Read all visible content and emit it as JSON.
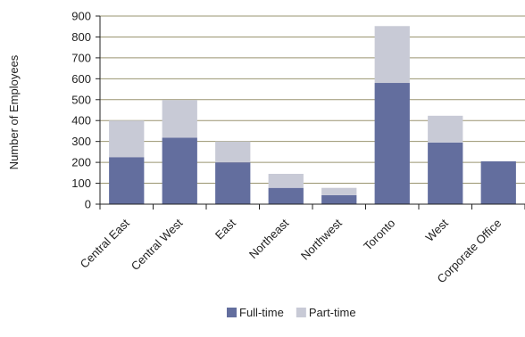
{
  "chart_data": {
    "type": "bar",
    "stacked": true,
    "title": "",
    "xlabel": "",
    "ylabel": "Number of Employees",
    "ylim": [
      0,
      900
    ],
    "yticks": [
      0,
      100,
      200,
      300,
      400,
      500,
      600,
      700,
      800,
      900
    ],
    "grid": true,
    "legend_position": "bottom",
    "categories": [
      "Central East",
      "Central West",
      "East",
      "Northeast",
      "Northwest",
      "Toronto",
      "West",
      "Corporate Office"
    ],
    "series": [
      {
        "name": "Full-time",
        "color": "#636e9e",
        "values": [
          225,
          318,
          200,
          78,
          43,
          580,
          295,
          205
        ]
      },
      {
        "name": "Part-time",
        "color": "#c8cad6",
        "values": [
          175,
          180,
          100,
          67,
          35,
          272,
          128,
          0
        ]
      }
    ],
    "gridline_color": "#9a9470"
  }
}
